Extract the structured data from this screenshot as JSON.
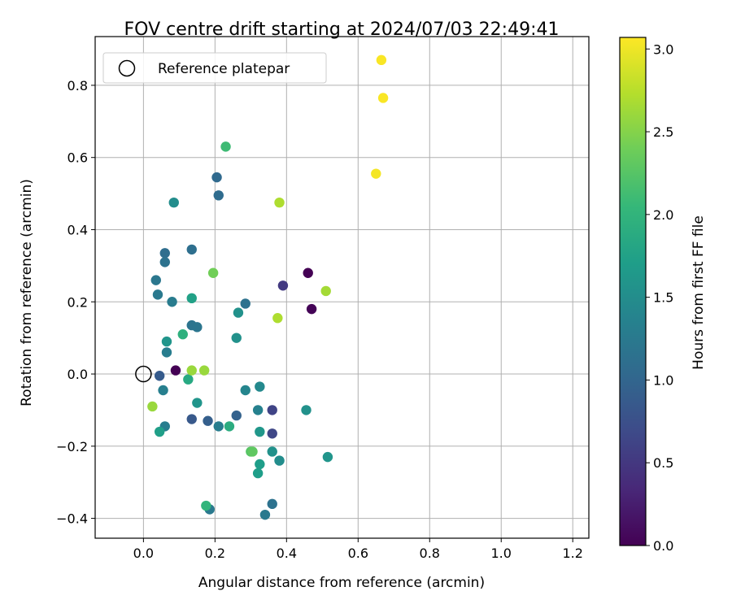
{
  "chart_data": {
    "type": "scatter",
    "title": "FOV centre drift starting at 2024/07/03 22:49:41",
    "xlabel": "Angular distance from reference (arcmin)",
    "ylabel": "Rotation from reference (arcmin)",
    "xlim": [
      -0.135,
      1.245
    ],
    "ylim": [
      -0.455,
      0.935
    ],
    "xticks": [
      0.0,
      0.2,
      0.4,
      0.6,
      0.8,
      1.0,
      1.2
    ],
    "xtick_labels": [
      "0.0",
      "0.2",
      "0.4",
      "0.6",
      "0.8",
      "1.0",
      "1.2"
    ],
    "yticks": [
      -0.4,
      -0.2,
      0.0,
      0.2,
      0.4,
      0.6,
      0.8
    ],
    "ytick_labels": [
      "−0.4",
      "−0.2",
      "0.0",
      "0.2",
      "0.4",
      "0.6",
      "0.8"
    ],
    "grid": true,
    "legend": {
      "placement": "upper-left",
      "entries": [
        "Reference platepar"
      ]
    },
    "reference_point": {
      "x": 0.0,
      "y": 0.0,
      "label": "Reference platepar"
    },
    "colorbar": {
      "label": "Hours from first FF file",
      "colormap": "viridis",
      "range": [
        0.0,
        3.07
      ],
      "ticks": [
        0.0,
        0.5,
        1.0,
        1.5,
        2.0,
        2.5,
        3.0
      ],
      "tick_labels": [
        "0.0",
        "0.5",
        "1.0",
        "1.5",
        "2.0",
        "2.5",
        "3.0"
      ]
    },
    "points": [
      {
        "x": 0.09,
        "y": 0.01,
        "c": 0.0
      },
      {
        "x": 0.46,
        "y": 0.28,
        "c": 0.0
      },
      {
        "x": 0.47,
        "y": 0.18,
        "c": 0.02
      },
      {
        "x": 0.39,
        "y": 0.245,
        "c": 0.52
      },
      {
        "x": 0.36,
        "y": -0.1,
        "c": 0.62
      },
      {
        "x": 0.36,
        "y": -0.165,
        "c": 0.65
      },
      {
        "x": 0.045,
        "y": -0.005,
        "c": 0.88
      },
      {
        "x": 0.135,
        "y": -0.125,
        "c": 0.85
      },
      {
        "x": 0.18,
        "y": -0.13,
        "c": 0.92
      },
      {
        "x": 0.26,
        "y": -0.115,
        "c": 0.95
      },
      {
        "x": 0.205,
        "y": 0.545,
        "c": 1.05
      },
      {
        "x": 0.21,
        "y": 0.495,
        "c": 1.08
      },
      {
        "x": 0.06,
        "y": 0.335,
        "c": 1.1
      },
      {
        "x": 0.135,
        "y": 0.345,
        "c": 1.12
      },
      {
        "x": 0.06,
        "y": 0.31,
        "c": 1.15
      },
      {
        "x": 0.285,
        "y": 0.195,
        "c": 1.15
      },
      {
        "x": 0.135,
        "y": 0.135,
        "c": 1.18
      },
      {
        "x": 0.15,
        "y": 0.13,
        "c": 1.2
      },
      {
        "x": 0.035,
        "y": 0.26,
        "c": 1.22
      },
      {
        "x": 0.04,
        "y": 0.22,
        "c": 1.25
      },
      {
        "x": 0.08,
        "y": 0.2,
        "c": 1.28
      },
      {
        "x": 0.065,
        "y": 0.06,
        "c": 1.3
      },
      {
        "x": 0.055,
        "y": -0.045,
        "c": 1.32
      },
      {
        "x": 0.06,
        "y": -0.145,
        "c": 1.3
      },
      {
        "x": 0.21,
        "y": -0.145,
        "c": 1.3
      },
      {
        "x": 0.185,
        "y": -0.375,
        "c": 1.25
      },
      {
        "x": 0.36,
        "y": -0.36,
        "c": 1.15
      },
      {
        "x": 0.34,
        "y": -0.39,
        "c": 1.25
      },
      {
        "x": 0.32,
        "y": -0.1,
        "c": 1.35
      },
      {
        "x": 0.285,
        "y": -0.045,
        "c": 1.4
      },
      {
        "x": 0.325,
        "y": -0.035,
        "c": 1.45
      },
      {
        "x": 0.085,
        "y": 0.475,
        "c": 1.5
      },
      {
        "x": 0.26,
        "y": 0.1,
        "c": 1.55
      },
      {
        "x": 0.265,
        "y": 0.17,
        "c": 1.55
      },
      {
        "x": 0.065,
        "y": 0.09,
        "c": 1.6
      },
      {
        "x": 0.15,
        "y": -0.08,
        "c": 1.6
      },
      {
        "x": 0.325,
        "y": -0.16,
        "c": 1.62
      },
      {
        "x": 0.36,
        "y": -0.215,
        "c": 1.55
      },
      {
        "x": 0.38,
        "y": -0.24,
        "c": 1.5
      },
      {
        "x": 0.455,
        "y": -0.1,
        "c": 1.55
      },
      {
        "x": 0.515,
        "y": -0.23,
        "c": 1.6
      },
      {
        "x": 0.32,
        "y": -0.275,
        "c": 1.7
      },
      {
        "x": 0.325,
        "y": -0.25,
        "c": 1.7
      },
      {
        "x": 0.045,
        "y": -0.16,
        "c": 1.72
      },
      {
        "x": 0.135,
        "y": 0.21,
        "c": 1.75
      },
      {
        "x": 0.125,
        "y": -0.015,
        "c": 1.85
      },
      {
        "x": 0.11,
        "y": 0.11,
        "c": 1.95
      },
      {
        "x": 0.24,
        "y": -0.145,
        "c": 1.9
      },
      {
        "x": 0.175,
        "y": -0.365,
        "c": 2.0
      },
      {
        "x": 0.23,
        "y": 0.63,
        "c": 2.1
      },
      {
        "x": 0.3,
        "y": -0.215,
        "c": 2.25
      },
      {
        "x": 0.305,
        "y": -0.215,
        "c": 2.3
      },
      {
        "x": 0.195,
        "y": 0.28,
        "c": 2.4
      },
      {
        "x": 0.135,
        "y": 0.01,
        "c": 2.6
      },
      {
        "x": 0.17,
        "y": 0.01,
        "c": 2.6
      },
      {
        "x": 0.025,
        "y": -0.09,
        "c": 2.6
      },
      {
        "x": 0.38,
        "y": 0.475,
        "c": 2.7
      },
      {
        "x": 0.375,
        "y": 0.155,
        "c": 2.7
      },
      {
        "x": 0.51,
        "y": 0.23,
        "c": 2.65
      },
      {
        "x": 0.65,
        "y": 0.555,
        "c": 3.03
      },
      {
        "x": 0.665,
        "y": 0.87,
        "c": 3.05
      },
      {
        "x": 0.67,
        "y": 0.765,
        "c": 3.05
      }
    ]
  }
}
